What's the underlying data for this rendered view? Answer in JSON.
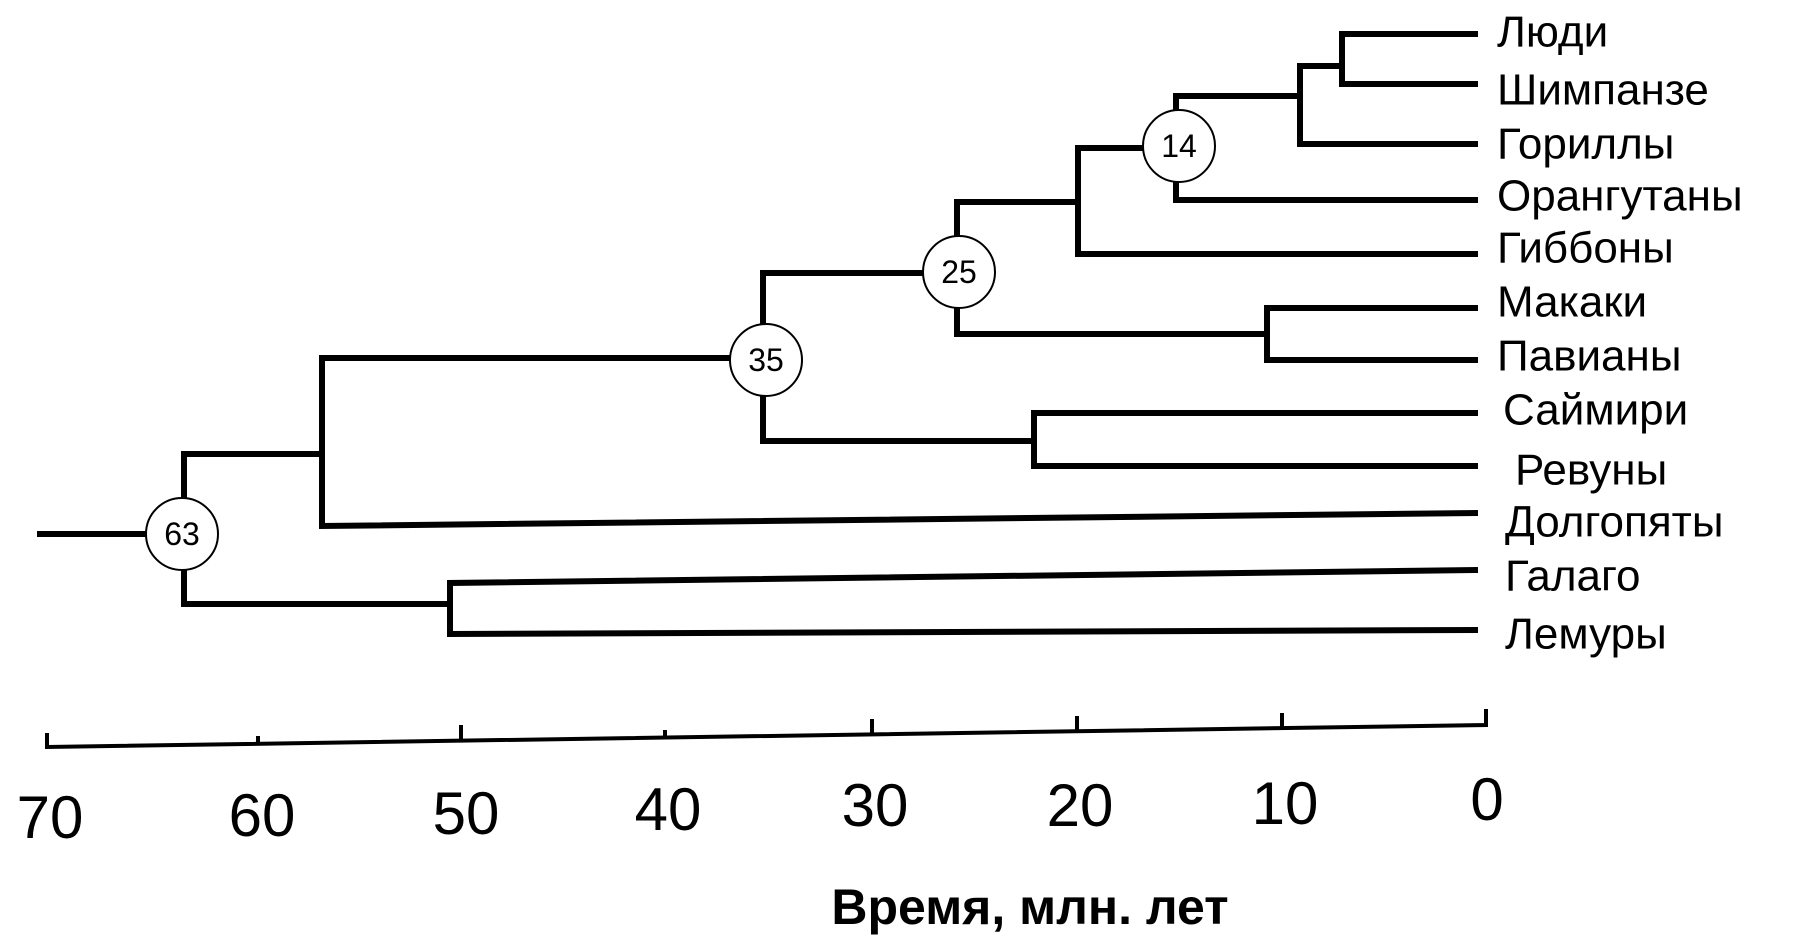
{
  "axis": {
    "title": "Время, млн. лет",
    "min": 0,
    "max": 70,
    "ticks": [
      "70",
      "60",
      "50",
      "40",
      "30",
      "20",
      "10",
      "0"
    ]
  },
  "nodes": [
    {
      "label": "63"
    },
    {
      "label": "35"
    },
    {
      "label": "25"
    },
    {
      "label": "14"
    }
  ],
  "taxa": [
    {
      "label": "Люди"
    },
    {
      "label": "Шимпанзе"
    },
    {
      "label": "Гориллы"
    },
    {
      "label": "Орангутаны"
    },
    {
      "label": "Гиббоны"
    },
    {
      "label": "Макаки"
    },
    {
      "label": "Павианы"
    },
    {
      "label": "Саймири"
    },
    {
      "label": "Ревуны"
    },
    {
      "label": "Долгопяты"
    },
    {
      "label": "Галаго"
    },
    {
      "label": "Лемуры"
    }
  ]
}
